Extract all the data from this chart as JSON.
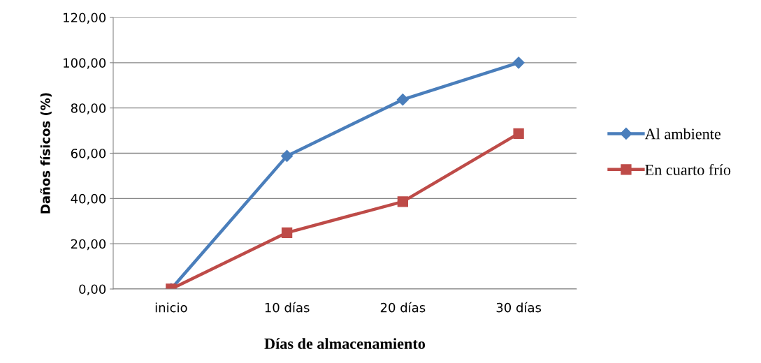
{
  "chart_data": {
    "type": "line",
    "xlabel": "Días de almacenamiento",
    "ylabel": "Daños físicos (%)",
    "categories": [
      "inicio",
      "10 días",
      "20 días",
      "30 días"
    ],
    "series": [
      {
        "name": "Al ambiente",
        "color": "#4a7ebb",
        "marker": "diamond",
        "values": [
          0,
          58.8,
          83.7,
          100
        ]
      },
      {
        "name": "En cuarto frío",
        "color": "#be4b48",
        "marker": "square",
        "values": [
          0,
          24.9,
          38.6,
          68.7
        ]
      }
    ],
    "ylim": [
      0,
      120
    ],
    "yticks": [
      {
        "value": 0,
        "label": "0,00"
      },
      {
        "value": 20,
        "label": "20,00"
      },
      {
        "value": 40,
        "label": "40,00"
      },
      {
        "value": 60,
        "label": "60,00"
      },
      {
        "value": 80,
        "label": "80,00"
      },
      {
        "value": 100,
        "label": "100,00"
      },
      {
        "value": 120,
        "label": "120,00"
      }
    ],
    "grid": "y",
    "legend": "right",
    "line_style": "solid"
  }
}
